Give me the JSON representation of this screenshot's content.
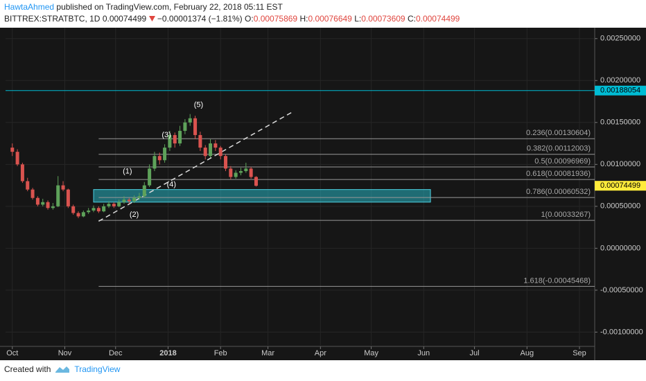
{
  "header": {
    "author": "HawtaAhmed",
    "published": "published on TradingView.com, February 22, 2018 05:11 EST",
    "symbol": "BITTREX:STRATBTC, 1D",
    "last": "0.00074499",
    "change": "−0.00001374 (−1.81%)",
    "o_label": "O:",
    "o": "0.00075869",
    "h_label": "H:",
    "h": "0.00076649",
    "l_label": "L:",
    "l": "0.00073609",
    "c_label": "C:",
    "c": "0.00074499"
  },
  "footer": {
    "created": "Created with",
    "brand": "TradingView"
  },
  "chart_data": {
    "type": "candlestick",
    "x": [
      "2017-10-01",
      "2017-10-04",
      "2017-10-07",
      "2017-10-10",
      "2017-10-13",
      "2017-10-16",
      "2017-10-19",
      "2017-10-22",
      "2017-10-25",
      "2017-10-28",
      "2017-10-31",
      "2017-11-03",
      "2017-11-06",
      "2017-11-09",
      "2017-11-12",
      "2017-11-15",
      "2017-11-18",
      "2017-11-21",
      "2017-11-24",
      "2017-11-27",
      "2017-11-30",
      "2017-12-03",
      "2017-12-06",
      "2017-12-09",
      "2017-12-12",
      "2017-12-15",
      "2017-12-18",
      "2017-12-21",
      "2017-12-24",
      "2017-12-27",
      "2017-12-30",
      "2018-01-02",
      "2018-01-05",
      "2018-01-08",
      "2018-01-11",
      "2018-01-14",
      "2018-01-17",
      "2018-01-20",
      "2018-01-23",
      "2018-01-26",
      "2018-01-29",
      "2018-02-01",
      "2018-02-04",
      "2018-02-07",
      "2018-02-10",
      "2018-02-13",
      "2018-02-16",
      "2018-02-19",
      "2018-02-22"
    ],
    "open": [
      0.0012,
      0.00115,
      0.001,
      0.0008,
      0.0007,
      0.0006,
      0.00052,
      0.00055,
      0.00048,
      0.0005,
      0.00075,
      0.0007,
      0.0005,
      0.00042,
      0.00038,
      0.00043,
      0.00045,
      0.00048,
      0.00044,
      0.0005,
      0.00053,
      0.0005,
      0.00055,
      0.00058,
      0.00056,
      0.0006,
      0.00062,
      0.00075,
      0.00095,
      0.0011,
      0.00105,
      0.0012,
      0.00135,
      0.00125,
      0.0014,
      0.0015,
      0.00155,
      0.00135,
      0.0012,
      0.0011,
      0.00125,
      0.0012,
      0.0011,
      0.00095,
      0.00085,
      0.0009,
      0.00092,
      0.00095,
      0.00085
    ],
    "high": [
      0.00125,
      0.00118,
      0.00102,
      0.00084,
      0.00072,
      0.00062,
      0.00059,
      0.00057,
      0.00054,
      0.00086,
      0.0008,
      0.00071,
      0.00052,
      0.00044,
      0.00045,
      0.00048,
      0.00051,
      0.0005,
      0.00053,
      0.00056,
      0.00055,
      0.00058,
      0.00062,
      0.0006,
      0.00063,
      0.00066,
      0.00079,
      0.001,
      0.00115,
      0.00114,
      0.00124,
      0.0014,
      0.00138,
      0.00146,
      0.00154,
      0.0016,
      0.00158,
      0.00139,
      0.00123,
      0.0013,
      0.00129,
      0.00122,
      0.00112,
      0.00098,
      0.00093,
      0.00096,
      0.00102,
      0.00097,
      0.00086
    ],
    "low": [
      0.0011,
      0.00098,
      0.00078,
      0.00068,
      0.00058,
      0.0005,
      0.0005,
      0.00046,
      0.00046,
      0.00049,
      0.00068,
      0.00048,
      0.0004,
      0.00036,
      0.00037,
      0.00041,
      0.00043,
      0.00042,
      0.00043,
      0.00048,
      0.00048,
      0.00049,
      0.00053,
      0.00053,
      0.00054,
      0.00058,
      0.0006,
      0.00073,
      0.00092,
      0.001,
      0.00102,
      0.00116,
      0.0012,
      0.00122,
      0.00136,
      0.00146,
      0.0013,
      0.00116,
      0.00106,
      0.00108,
      0.00116,
      0.00106,
      0.00092,
      0.00082,
      0.00083,
      0.00087,
      0.0009,
      0.00083,
      0.000736
    ],
    "close": [
      0.00115,
      0.001,
      0.0008,
      0.0007,
      0.0006,
      0.00052,
      0.00055,
      0.00048,
      0.0005,
      0.00075,
      0.0007,
      0.0005,
      0.00042,
      0.00038,
      0.00043,
      0.00045,
      0.00048,
      0.00044,
      0.0005,
      0.00053,
      0.0005,
      0.00055,
      0.00058,
      0.00056,
      0.0006,
      0.00062,
      0.00075,
      0.00095,
      0.0011,
      0.00105,
      0.0012,
      0.00135,
      0.00125,
      0.0014,
      0.0015,
      0.00155,
      0.00135,
      0.0012,
      0.0011,
      0.00125,
      0.0012,
      0.0011,
      0.00095,
      0.00085,
      0.0009,
      0.00092,
      0.00095,
      0.00085,
      0.00074499
    ],
    "up_color": "#5ea25a",
    "down_color": "#d9534f",
    "xlim": [
      "2017-09-27",
      "2018-09-10"
    ],
    "xticks": [
      {
        "value": "2017-10-01",
        "label": "Oct"
      },
      {
        "value": "2017-11-01",
        "label": "Nov"
      },
      {
        "value": "2017-12-01",
        "label": "Dec"
      },
      {
        "value": "2018-01-01",
        "label": "2018"
      },
      {
        "value": "2018-02-01",
        "label": "Feb"
      },
      {
        "value": "2018-03-01",
        "label": "Mar"
      },
      {
        "value": "2018-04-01",
        "label": "Apr"
      },
      {
        "value": "2018-05-01",
        "label": "May"
      },
      {
        "value": "2018-06-01",
        "label": "Jun"
      },
      {
        "value": "2018-07-01",
        "label": "Jul"
      },
      {
        "value": "2018-08-01",
        "label": "Aug"
      },
      {
        "value": "2018-09-01",
        "label": "Sep"
      }
    ],
    "ylim": [
      -0.00117,
      0.00263
    ],
    "yticks": [
      {
        "value": 0.0025,
        "label": "0.00250000"
      },
      {
        "value": 0.002,
        "label": "0.00200000"
      },
      {
        "value": 0.0015,
        "label": "0.00150000"
      },
      {
        "value": 0.001,
        "label": "0.00100000"
      },
      {
        "value": 0.0005,
        "label": "0.00050000"
      },
      {
        "value": 0,
        "label": "0.00000000"
      },
      {
        "value": -0.0005,
        "label": "-0.00050000"
      },
      {
        "value": -0.001,
        "label": "-0.00100000"
      }
    ],
    "grid": true,
    "fib_start": "2017-11-21",
    "fib_levels": [
      {
        "value": 0.00130604,
        "label": "0.236(0.00130604)"
      },
      {
        "value": 0.00112003,
        "label": "0.382(0.00112003)"
      },
      {
        "value": 0.00096969,
        "label": "0.5(0.00096969)"
      },
      {
        "value": 0.00081936,
        "label": "0.618(0.00081936)"
      },
      {
        "value": 0.00060532,
        "label": "0.786(0.00060532)"
      },
      {
        "value": 0.00033267,
        "label": "1(0.00033267)"
      },
      {
        "value": -0.00045468,
        "label": "1.618(-0.00045468)"
      }
    ],
    "horizontal_line": {
      "value": 0.00188054,
      "label": "0.00188054",
      "color": "#00bcd4"
    },
    "last_price": {
      "value": 0.00074499,
      "label": "0.00074499",
      "color": "#ffeb3b"
    },
    "zone": {
      "x0": "2017-11-18",
      "x1": "2018-06-05",
      "y0": 0.00055,
      "y1": 0.0007
    },
    "trendline": {
      "x0": "2017-11-21",
      "y0": 0.000322,
      "x1": "2018-03-15",
      "y1": 0.00162
    },
    "waves": [
      {
        "text": "(1)",
        "x": "2017-12-08",
        "y": 0.000917
      },
      {
        "text": "(2)",
        "x": "2017-12-12",
        "y": 0.000397
      },
      {
        "text": "(3)",
        "x": "2017-12-31",
        "y": 0.001347
      },
      {
        "text": "(4)",
        "x": "2018-01-03",
        "y": 0.00076
      },
      {
        "text": "(5)",
        "x": "2018-01-19",
        "y": 0.00171
      }
    ]
  }
}
